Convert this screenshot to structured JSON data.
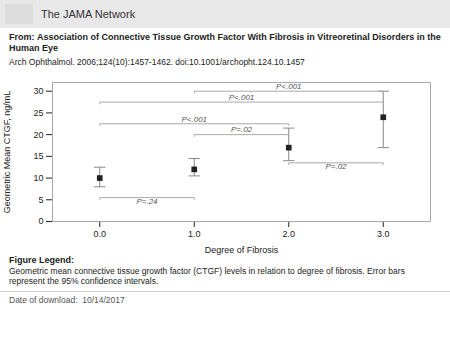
{
  "chart_data": {
    "type": "scatter",
    "header": "The JAMA Network",
    "header_color": "#e8e8e8",
    "from_label": "From:",
    "title": "Association of Connective Tissue Growth Factor With Fibrosis in Vitreoretinal Disorders in the Human Eye",
    "citation": "Arch Ophthalmol. 2006;124(10):1457-1462. doi:10.1001/archopht.124.10.1457",
    "caption_label": "Figure Legend:",
    "caption": "Geometric mean connective tissue growth factor (CTGF) levels in relation to degree of fibrosis. Error bars represent the 95% confidence intervals.",
    "date_label": "Date of download:",
    "date_value": "10/14/2017",
    "x": [
      0,
      1,
      2,
      3
    ],
    "values": [
      10,
      12,
      17,
      24
    ],
    "yerr_low": [
      2.0,
      1.5,
      3.0,
      7.0
    ],
    "yerr_high": [
      2.5,
      2.5,
      4.5,
      6.0
    ],
    "marker": "square",
    "color": "#222222",
    "error_color": "#888888",
    "xlabel": "Degree of Fibrosis",
    "ylabel": "Geometric Mean CTGF, ng/mL",
    "xlim": [
      -0.5,
      3.5
    ],
    "xticks": [
      0,
      1,
      2,
      3
    ],
    "ylim": [
      0,
      32
    ],
    "yticks": [
      0,
      5,
      10,
      15,
      20,
      25,
      30
    ],
    "grid": false,
    "brackets": [
      {
        "x1": 0,
        "x2": 1,
        "y": 5.5,
        "label": "P=.24",
        "label_x": 0.5,
        "label_y": 4.0
      },
      {
        "x1": 0,
        "x2": 2,
        "y": 22.5,
        "label": "P<.001",
        "label_x": 1.0,
        "label_y": 23.0
      },
      {
        "x1": 1,
        "x2": 2,
        "y": 20.0,
        "label": "P=.02",
        "label_x": 1.5,
        "label_y": 20.5
      },
      {
        "x1": 2,
        "x2": 3,
        "y": 13.5,
        "label": "P=.02",
        "label_x": 2.5,
        "label_y": 12.2
      },
      {
        "x1": 0,
        "x2": 3,
        "y": 27.5,
        "label": "P<.001",
        "label_x": 1.5,
        "label_y": 28.0
      },
      {
        "x1": 1,
        "x2": 3,
        "y": 30.0,
        "label": "P<.001",
        "label_x": 2.0,
        "label_y": 30.5
      }
    ]
  }
}
